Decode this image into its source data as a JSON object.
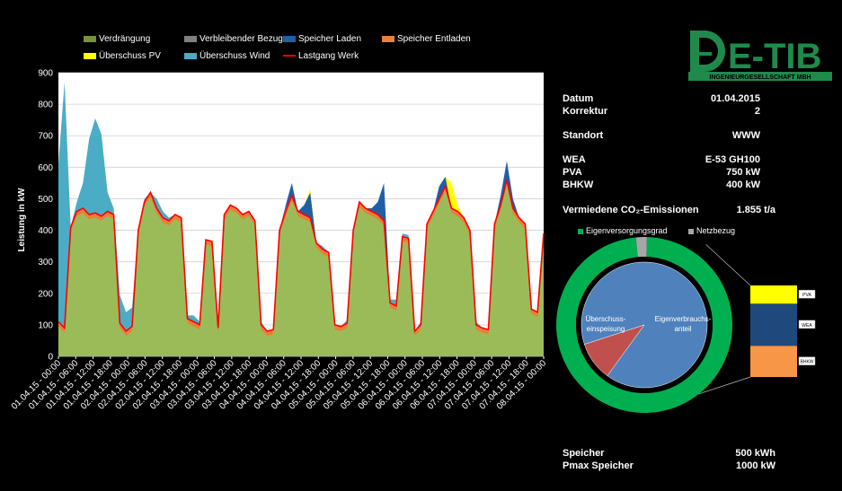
{
  "brand": {
    "logo_name": "E-TIB",
    "logo_sub": "INGENIEURGESELLSCHAFT MBH",
    "color": "#1f8a4c"
  },
  "legend": {
    "items": [
      {
        "label": "Verdrängung",
        "color": "#76923c"
      },
      {
        "label": "Verbleibender Bezug",
        "color": "#808080"
      },
      {
        "label": "Speicher Laden",
        "color": "#1f5fa6"
      },
      {
        "label": "Speicher Entladen",
        "color": "#e8803a"
      },
      {
        "label": "Überschuss PV",
        "color": "#ffff00"
      },
      {
        "label": "Überschuss Wind",
        "color": "#4bacc6"
      },
      {
        "label": "Lastgang Werk",
        "color": "#ff0000"
      }
    ]
  },
  "info": {
    "datum_label": "Datum",
    "datum_value": "01.04.2015",
    "korrektur_label": "Korrektur",
    "korrektur_value": "2",
    "standort_label": "Standort",
    "standort_value": "WWW",
    "wea_label": "WEA",
    "wea_value": "E-53 GH100",
    "pva_label": "PVA",
    "pva_value": "750 kW",
    "bhkw_label": "BHKW",
    "bhkw_value": "400 kW",
    "co2_label": "Vermiedene CO₂-Emissionen",
    "co2_value": "1.855 t/a",
    "speicher_label": "Speicher",
    "speicher_value": "500 kWh",
    "pmax_label": "Pmax Speicher",
    "pmax_value": "1000 kW"
  },
  "chart_data": [
    {
      "type": "area",
      "ylabel": "Leistung in kW",
      "ylim": [
        0,
        900
      ],
      "yticks": [
        0,
        100,
        200,
        300,
        400,
        500,
        600,
        700,
        800,
        900
      ],
      "grid": true,
      "x_tick_labels": [
        "01.04.15 - 00:00",
        "01.04.15 - 06:00",
        "01.04.15 - 12:00",
        "01.04.15 - 18:00",
        "02.04.15 - 00:00",
        "02.04.15 - 06:00",
        "02.04.15 - 12:00",
        "02.04.15 - 18:00",
        "03.04.15 - 00:00",
        "03.04.15 - 06:00",
        "03.04.15 - 12:00",
        "03.04.15 - 18:00",
        "04.04.15 - 00:00",
        "04.04.15 - 06:00",
        "04.04.15 - 12:00",
        "04.04.15 - 18:00",
        "05.04.15 - 00:00",
        "05.04.15 - 06:00",
        "05.04.15 - 12:00",
        "05.04.15 - 18:00",
        "06.04.15 - 00:00",
        "06.04.15 - 06:00",
        "06.04.15 - 12:00",
        "06.04.15 - 18:00",
        "07.04.15 - 00:00",
        "07.04.15 - 06:00",
        "07.04.15 - 12:00",
        "07.04.15 - 18:00",
        "08.04.15 - 00:00"
      ],
      "series": [
        {
          "name": "Lastgang Werk",
          "values": [
            110,
            90,
            410,
            460,
            470,
            450,
            455,
            445,
            460,
            450,
            105,
            80,
            95,
            400,
            490,
            520,
            470,
            440,
            430,
            450,
            440,
            120,
            110,
            100,
            370,
            365,
            90,
            450,
            480,
            470,
            450,
            460,
            430,
            100,
            80,
            85,
            400,
            460,
            510,
            460,
            450,
            440,
            360,
            340,
            330,
            100,
            95,
            105,
            400,
            490,
            470,
            460,
            450,
            430,
            170,
            160,
            380,
            375,
            80,
            100,
            420,
            460,
            500,
            540,
            470,
            460,
            440,
            400,
            100,
            90,
            85,
            420,
            480,
            560,
            470,
            440,
            420,
            150,
            140,
            390
          ]
        },
        {
          "name": "Überschuss Wind",
          "values": [
            500,
            780,
            0,
            30,
            80,
            240,
            300,
            260,
            60,
            20,
            90,
            60,
            60,
            0,
            10,
            0,
            30,
            20,
            10,
            0,
            0,
            10,
            20,
            10,
            0,
            0,
            20,
            0,
            0,
            0,
            0,
            0,
            0,
            10,
            0,
            0,
            0,
            10,
            0,
            0,
            0,
            0,
            0,
            10,
            0,
            0,
            0,
            10,
            0,
            0,
            0,
            0,
            0,
            0,
            10,
            20,
            10,
            10,
            0,
            10,
            0,
            0,
            0,
            0,
            0,
            0,
            0,
            0,
            10,
            0,
            0,
            0,
            0,
            0,
            0,
            0,
            0,
            0,
            0,
            0
          ]
        },
        {
          "name": "Speicher Laden",
          "values": [
            0,
            0,
            0,
            0,
            0,
            0,
            0,
            0,
            0,
            0,
            0,
            0,
            0,
            0,
            0,
            0,
            0,
            0,
            0,
            0,
            0,
            0,
            0,
            0,
            0,
            0,
            0,
            0,
            0,
            0,
            0,
            0,
            0,
            0,
            0,
            0,
            0,
            10,
            40,
            0,
            30,
            80,
            0,
            0,
            0,
            0,
            0,
            0,
            0,
            0,
            0,
            10,
            40,
            120,
            0,
            0,
            0,
            0,
            0,
            0,
            0,
            0,
            40,
            30,
            0,
            0,
            0,
            0,
            0,
            0,
            0,
            0,
            30,
            60,
            30,
            0,
            0,
            0,
            0,
            0
          ]
        },
        {
          "name": "Überschuss PV",
          "values": [
            0,
            0,
            0,
            0,
            0,
            0,
            0,
            0,
            0,
            0,
            0,
            0,
            0,
            0,
            0,
            0,
            0,
            0,
            0,
            0,
            0,
            0,
            0,
            0,
            0,
            0,
            0,
            0,
            0,
            0,
            0,
            0,
            0,
            0,
            0,
            0,
            0,
            0,
            0,
            0,
            0,
            10,
            0,
            0,
            0,
            0,
            0,
            0,
            0,
            0,
            0,
            0,
            0,
            0,
            0,
            0,
            0,
            0,
            0,
            0,
            0,
            0,
            0,
            0,
            80,
            20,
            0,
            0,
            0,
            0,
            0,
            0,
            0,
            0,
            0,
            0,
            0,
            0,
            0,
            0
          ]
        }
      ]
    },
    {
      "type": "pie",
      "legend": [
        "Eigenversorgungsgrad",
        "Netzbezug"
      ],
      "outer": [
        {
          "label": "Eigenversorgungsgrad",
          "value": 98,
          "color": "#00b050"
        },
        {
          "label": "Netzbezug",
          "value": 2,
          "color": "#a6a6a6"
        }
      ],
      "inner": [
        {
          "label": "Eigenverbrauchs-anteil",
          "value": 90,
          "color": "#4f81bd"
        },
        {
          "label": "Überschuss-einspeisung",
          "value": 10,
          "color": "#c0504d"
        }
      ],
      "stack": [
        {
          "label": "PVA",
          "value": 20,
          "color": "#ffff00"
        },
        {
          "label": "WEA",
          "value": 46,
          "color": "#1f497d"
        },
        {
          "label": "BHKW",
          "value": 34,
          "color": "#f79646"
        }
      ]
    }
  ]
}
